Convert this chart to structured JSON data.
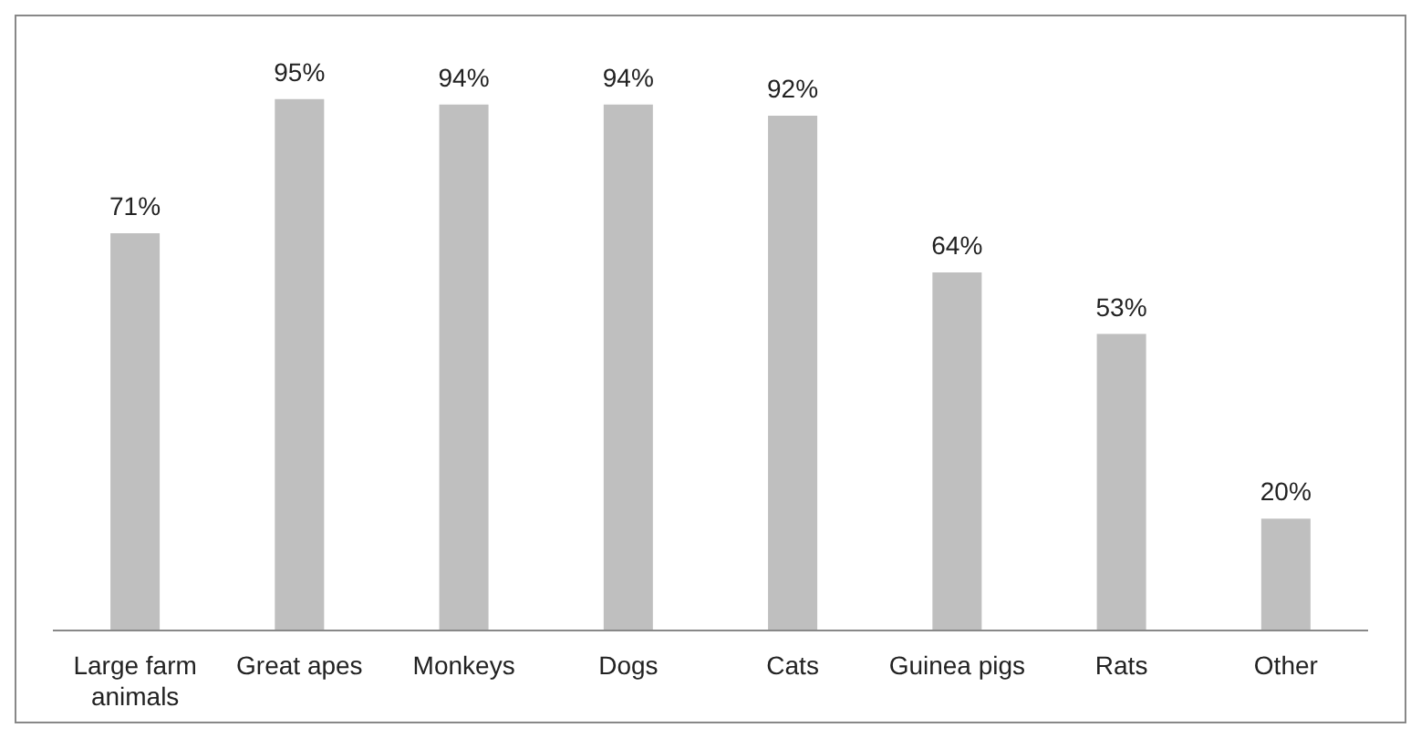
{
  "chart_data": {
    "type": "bar",
    "categories": [
      "Large farm animals",
      "Great apes",
      "Monkeys",
      "Dogs",
      "Cats",
      "Guinea pigs",
      "Rats",
      "Other"
    ],
    "values": [
      71,
      95,
      94,
      94,
      92,
      64,
      53,
      20
    ],
    "value_labels": [
      "71%",
      "95%",
      "94%",
      "94%",
      "92%",
      "64%",
      "53%",
      "20%"
    ],
    "color": "#bfbfbf",
    "grid": false,
    "legend": false
  }
}
